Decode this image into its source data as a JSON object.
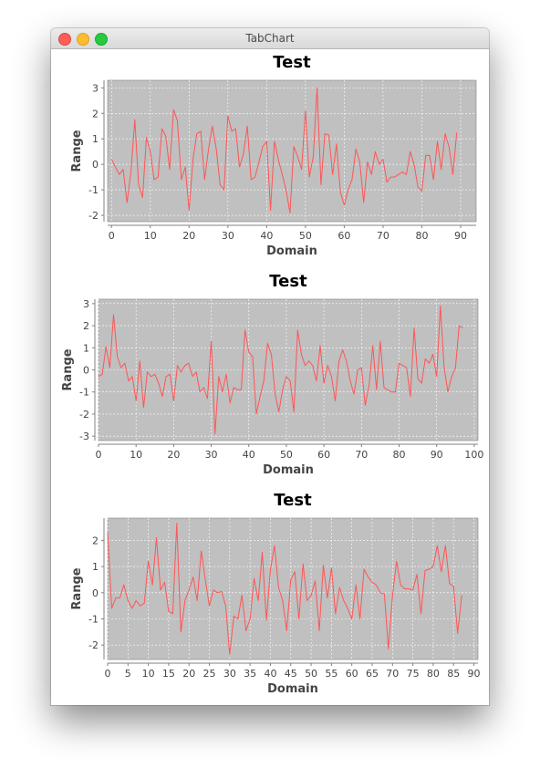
{
  "window": {
    "title": "TabChart"
  },
  "colors": {
    "series": "#ff5555",
    "plot_background": "#c0c0c0",
    "gridline": "#ffffff",
    "axis": "#808080"
  },
  "chart_data": [
    {
      "type": "line",
      "title": "Test",
      "xlabel": "Domain",
      "ylabel": "Range",
      "grid": true,
      "xlim": [
        -1,
        94
      ],
      "ylim": [
        -2.25,
        3.3
      ],
      "xticks": [
        0,
        10,
        20,
        30,
        40,
        50,
        60,
        70,
        80,
        90
      ],
      "xtick_labels": [
        "0",
        "10",
        "20",
        "30",
        "40",
        "50",
        "60",
        "70",
        "80",
        "90"
      ],
      "yticks": [
        -2,
        -1,
        0,
        1,
        2,
        3
      ],
      "ytick_labels": [
        "-2",
        "-1",
        "0",
        "1",
        "2",
        "3"
      ],
      "series": [
        {
          "x": [
            0,
            1,
            2,
            3,
            4,
            5,
            6,
            7,
            8,
            9,
            10,
            11,
            12,
            13,
            14,
            15,
            16,
            17,
            18,
            19,
            20,
            21,
            22,
            23,
            24,
            25,
            26,
            27,
            28,
            29,
            30,
            31,
            32,
            33,
            34,
            35,
            36,
            37,
            38,
            39,
            40,
            41,
            42,
            43,
            44,
            45,
            46,
            47,
            48,
            49,
            50,
            51,
            52,
            53,
            54,
            55,
            56,
            57,
            58,
            59,
            60,
            61,
            62,
            63,
            64,
            65,
            66,
            67,
            68,
            69,
            70,
            71,
            72,
            73,
            74,
            75,
            76,
            77,
            78,
            79,
            80,
            81,
            82,
            83,
            84,
            85,
            86,
            87,
            88,
            89
          ],
          "y": [
            0.2,
            -0.1,
            -0.4,
            -0.2,
            -1.5,
            -0.3,
            1.75,
            -0.8,
            -1.3,
            1.05,
            0.5,
            -0.6,
            -0.5,
            1.4,
            1.1,
            -0.2,
            2.15,
            1.7,
            -0.6,
            -0.1,
            -1.8,
            0.2,
            1.2,
            1.3,
            -0.6,
            0.6,
            1.5,
            0.6,
            -0.8,
            -1.0,
            1.9,
            1.3,
            1.4,
            -0.1,
            0.4,
            1.5,
            -0.6,
            -0.5,
            0.1,
            0.7,
            0.9,
            -1.8,
            0.9,
            0.2,
            -0.4,
            -1.0,
            -1.9,
            0.7,
            0.3,
            -0.2,
            2.1,
            -0.5,
            0.3,
            3.0,
            -0.8,
            1.2,
            1.15,
            -0.4,
            0.8,
            -1.1,
            -1.6,
            -1.0,
            -0.6,
            0.6,
            0.1,
            -1.5,
            0.1,
            -0.4,
            0.5,
            0.0,
            0.2,
            -0.7,
            -0.5,
            -0.5,
            -0.4,
            -0.3,
            -0.4,
            0.5,
            0.0,
            -0.9,
            -1.05,
            0.35,
            0.35,
            -0.6,
            0.9,
            -0.2,
            1.2,
            0.7,
            -0.4,
            1.25
          ]
        }
      ]
    },
    {
      "type": "line",
      "title": "Test",
      "xlabel": "Domain",
      "ylabel": "Range",
      "grid": true,
      "xlim": [
        0,
        101
      ],
      "ylim": [
        -3.2,
        3.2
      ],
      "xticks": [
        0,
        10,
        20,
        30,
        40,
        50,
        60,
        70,
        80,
        90,
        100
      ],
      "xtick_labels": [
        "0",
        "10",
        "20",
        "30",
        "40",
        "50",
        "60",
        "70",
        "80",
        "90",
        "100"
      ],
      "yticks": [
        -3,
        -2,
        -1,
        0,
        1,
        2,
        3
      ],
      "ytick_labels": [
        "-3",
        "-2",
        "-1",
        "0",
        "1",
        "2",
        "3"
      ],
      "series": [
        {
          "x": [
            0,
            1,
            2,
            3,
            4,
            5,
            6,
            7,
            8,
            9,
            10,
            11,
            12,
            13,
            14,
            15,
            16,
            17,
            18,
            19,
            20,
            21,
            22,
            23,
            24,
            25,
            26,
            27,
            28,
            29,
            30,
            31,
            32,
            33,
            34,
            35,
            36,
            37,
            38,
            39,
            40,
            41,
            42,
            43,
            44,
            45,
            46,
            47,
            48,
            49,
            50,
            51,
            52,
            53,
            54,
            55,
            56,
            57,
            58,
            59,
            60,
            61,
            62,
            63,
            64,
            65,
            66,
            67,
            68,
            69,
            70,
            71,
            72,
            73,
            74,
            75,
            76,
            77,
            78,
            79,
            80,
            81,
            82,
            83,
            84,
            85,
            86,
            87,
            88,
            89,
            90,
            91,
            92,
            93,
            94,
            95,
            96,
            97
          ],
          "y": [
            -0.3,
            -0.2,
            1.05,
            0.1,
            2.5,
            0.6,
            0.1,
            0.3,
            -0.5,
            -0.3,
            -1.4,
            0.4,
            -1.7,
            -0.1,
            -0.3,
            -0.2,
            -0.6,
            -1.2,
            -0.3,
            -0.2,
            -1.4,
            0.2,
            -0.1,
            0.2,
            0.3,
            -0.3,
            -0.1,
            -1.0,
            -0.8,
            -1.3,
            1.3,
            -2.9,
            -0.3,
            -1.0,
            -0.2,
            -1.5,
            -0.8,
            -0.9,
            -0.9,
            1.8,
            0.8,
            0.6,
            -2.0,
            -1.2,
            -0.5,
            1.2,
            0.7,
            -1.1,
            -1.9,
            -0.9,
            -0.3,
            -0.5,
            -1.9,
            1.8,
            0.7,
            0.2,
            0.4,
            0.2,
            -0.5,
            1.1,
            -0.6,
            0.2,
            -0.3,
            -1.4,
            0.4,
            0.9,
            0.4,
            -0.5,
            -1.1,
            0.0,
            0.1,
            -1.6,
            -0.7,
            1.1,
            -0.9,
            1.3,
            -0.8,
            -0.9,
            -1.0,
            -1.0,
            0.3,
            0.2,
            0.1,
            -1.2,
            1.9,
            -0.4,
            -0.6,
            0.5,
            0.3,
            0.7,
            -0.3,
            2.9,
            0.1,
            -1.0,
            -0.3,
            0.1,
            2.0,
            1.9
          ]
        }
      ]
    },
    {
      "type": "line",
      "title": "Test",
      "xlabel": "Domain",
      "ylabel": "Range",
      "grid": true,
      "xlim": [
        0,
        91
      ],
      "ylim": [
        -2.55,
        2.85
      ],
      "xticks": [
        0,
        5,
        10,
        15,
        20,
        25,
        30,
        35,
        40,
        45,
        50,
        55,
        60,
        65,
        70,
        75,
        80,
        85,
        90
      ],
      "xtick_labels": [
        "0",
        "5",
        "10",
        "15",
        "20",
        "25",
        "30",
        "35",
        "40",
        "45",
        "50",
        "55",
        "60",
        "65",
        "70",
        "75",
        "80",
        "85",
        "90"
      ],
      "yticks": [
        -2,
        -1,
        0,
        1,
        2
      ],
      "ytick_labels": [
        "-2",
        "-1",
        "0",
        "1",
        "2"
      ],
      "series": [
        {
          "x": [
            0,
            1,
            2,
            3,
            4,
            5,
            6,
            7,
            8,
            9,
            10,
            11,
            12,
            13,
            14,
            15,
            16,
            17,
            18,
            19,
            20,
            21,
            22,
            23,
            24,
            25,
            26,
            27,
            28,
            29,
            30,
            31,
            32,
            33,
            34,
            35,
            36,
            37,
            38,
            39,
            40,
            41,
            42,
            43,
            44,
            45,
            46,
            47,
            48,
            49,
            50,
            51,
            52,
            53,
            54,
            55,
            56,
            57,
            58,
            59,
            60,
            61,
            62,
            63,
            64,
            65,
            66,
            67,
            68,
            69,
            70,
            71,
            72,
            73,
            74,
            75,
            76,
            77,
            78,
            79,
            80,
            81,
            82,
            83,
            84,
            85,
            86,
            87
          ],
          "y": [
            2.3,
            -0.6,
            -0.2,
            -0.2,
            0.3,
            -0.3,
            -0.6,
            -0.3,
            -0.5,
            -0.4,
            1.2,
            0.3,
            2.1,
            0.1,
            0.4,
            -0.7,
            -0.8,
            2.65,
            -1.5,
            -0.3,
            0.1,
            0.6,
            -0.3,
            1.6,
            0.5,
            -0.5,
            0.1,
            0.0,
            0.05,
            -0.5,
            -2.35,
            -0.9,
            -1.0,
            -0.1,
            -1.45,
            -1.0,
            0.55,
            -0.3,
            1.55,
            -1.05,
            0.9,
            1.8,
            0.2,
            -0.3,
            -1.45,
            0.5,
            0.8,
            -1.0,
            1.1,
            -0.3,
            -0.1,
            0.45,
            -1.45,
            1.05,
            -0.2,
            0.95,
            -0.8,
            0.2,
            -0.3,
            -0.6,
            -1.0,
            0.3,
            -1.0,
            0.9,
            0.6,
            0.4,
            0.3,
            0.0,
            -0.05,
            -2.15,
            -0.1,
            1.2,
            0.3,
            0.15,
            0.15,
            0.1,
            0.7,
            -0.8,
            0.85,
            0.9,
            1.0,
            1.8,
            0.8,
            1.8,
            0.35,
            0.25,
            -1.55,
            -0.1
          ]
        }
      ]
    }
  ]
}
